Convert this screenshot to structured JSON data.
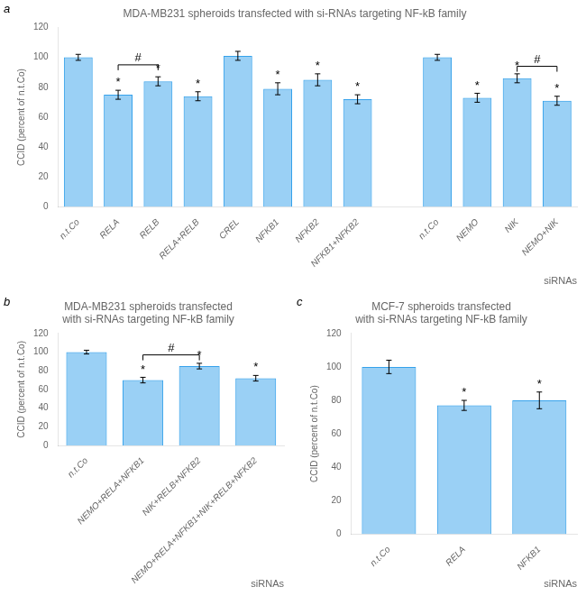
{
  "chart_data": [
    {
      "type": "bar",
      "panel_label": "a",
      "title": "MDA-MB231 spheroids transfected with si-RNAs targeting NF-kB family",
      "categories": [
        "n.t.Co",
        "RELA",
        "RELB",
        "RELA+RELB",
        "CREL",
        "NFKB1",
        "NFKB2",
        "NFKB1+NFKB2",
        null,
        "n.t.Co",
        "NEMO",
        "NIK",
        "NEMO+NIK"
      ],
      "values": [
        100,
        75,
        84,
        74,
        101,
        79,
        85,
        72,
        null,
        100,
        73,
        86,
        71
      ],
      "errors": [
        2,
        3,
        3,
        3,
        3,
        4,
        4,
        3,
        null,
        2,
        3,
        3,
        3
      ],
      "value_annotations": [
        null,
        "*",
        "*",
        "*",
        null,
        "*",
        "*",
        "*",
        null,
        null,
        "*",
        "*",
        "*"
      ],
      "brackets": [
        {
          "from": "RELA",
          "to": "RELB",
          "y": 95,
          "text": "#"
        },
        {
          "from": "NIK",
          "to": "NEMO+NIK",
          "y": 94,
          "text": "#"
        }
      ],
      "ylabel": "CCID (percent of n.t.Co)",
      "xlabel": "siRNAs",
      "ylim": [
        0,
        120
      ],
      "yticks": [
        0,
        20,
        40,
        60,
        80,
        100,
        120
      ],
      "grid": false
    },
    {
      "type": "bar",
      "panel_label": "b",
      "title": "MDA-MB231 spheroids transfected\nwith si-RNAs targeting NF-kB family",
      "categories": [
        "n.t.Co",
        "NEMO+RELA+NFKB1",
        "NIK+RELB+NFKB2",
        "NEMO+RELA+NFKB1+NIK+RELB+NFKB2"
      ],
      "values": [
        100,
        70,
        85,
        72
      ],
      "errors": [
        2,
        3,
        3,
        3
      ],
      "value_annotations": [
        null,
        "*",
        "*",
        "*"
      ],
      "brackets": [
        {
          "from": "NEMO+RELA+NFKB1",
          "to": "NIK+RELB+NFKB2",
          "y": 97,
          "text": "#"
        }
      ],
      "ylabel": "CCID (percent of n.t.Co)",
      "xlabel": "siRNAs",
      "ylim": [
        0,
        120
      ],
      "yticks": [
        0,
        20,
        40,
        60,
        80,
        100,
        120
      ],
      "grid": false
    },
    {
      "type": "bar",
      "panel_label": "c",
      "title": "MCF-7 spheroids transfected\nwith si-RNAs targeting NF-kB family",
      "categories": [
        "n.t.Co",
        "RELA",
        "NFKB1"
      ],
      "values": [
        100,
        77,
        80
      ],
      "errors": [
        4,
        3,
        5
      ],
      "value_annotations": [
        null,
        "*",
        "*"
      ],
      "brackets": [],
      "ylabel": "CCID (percent of n.t.Co)",
      "xlabel": "siRNAs",
      "ylim": [
        0,
        120
      ],
      "yticks": [
        0,
        20,
        40,
        60,
        80,
        100,
        120
      ],
      "grid": false
    }
  ]
}
